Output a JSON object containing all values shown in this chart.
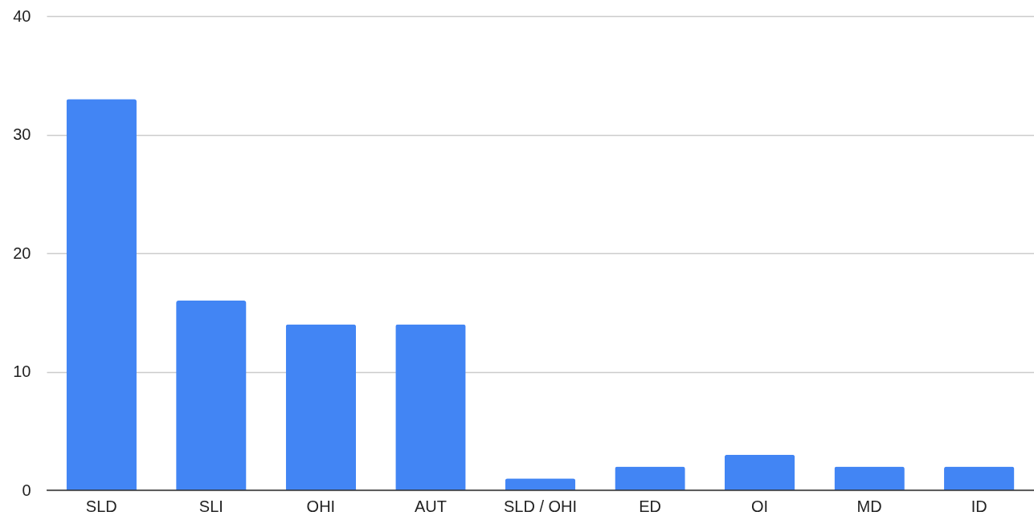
{
  "chart_data": {
    "type": "bar",
    "categories": [
      "SLD",
      "SLI",
      "OHI",
      "AUT",
      "SLD / OHI",
      "ED",
      "OI",
      "MD",
      "ID"
    ],
    "values": [
      33,
      16,
      14,
      14,
      1,
      2,
      3,
      2,
      2
    ],
    "color": "#4285f4",
    "ylim": [
      0,
      40
    ],
    "yticks": [
      0,
      10,
      20,
      30,
      40
    ],
    "grid": "y"
  }
}
